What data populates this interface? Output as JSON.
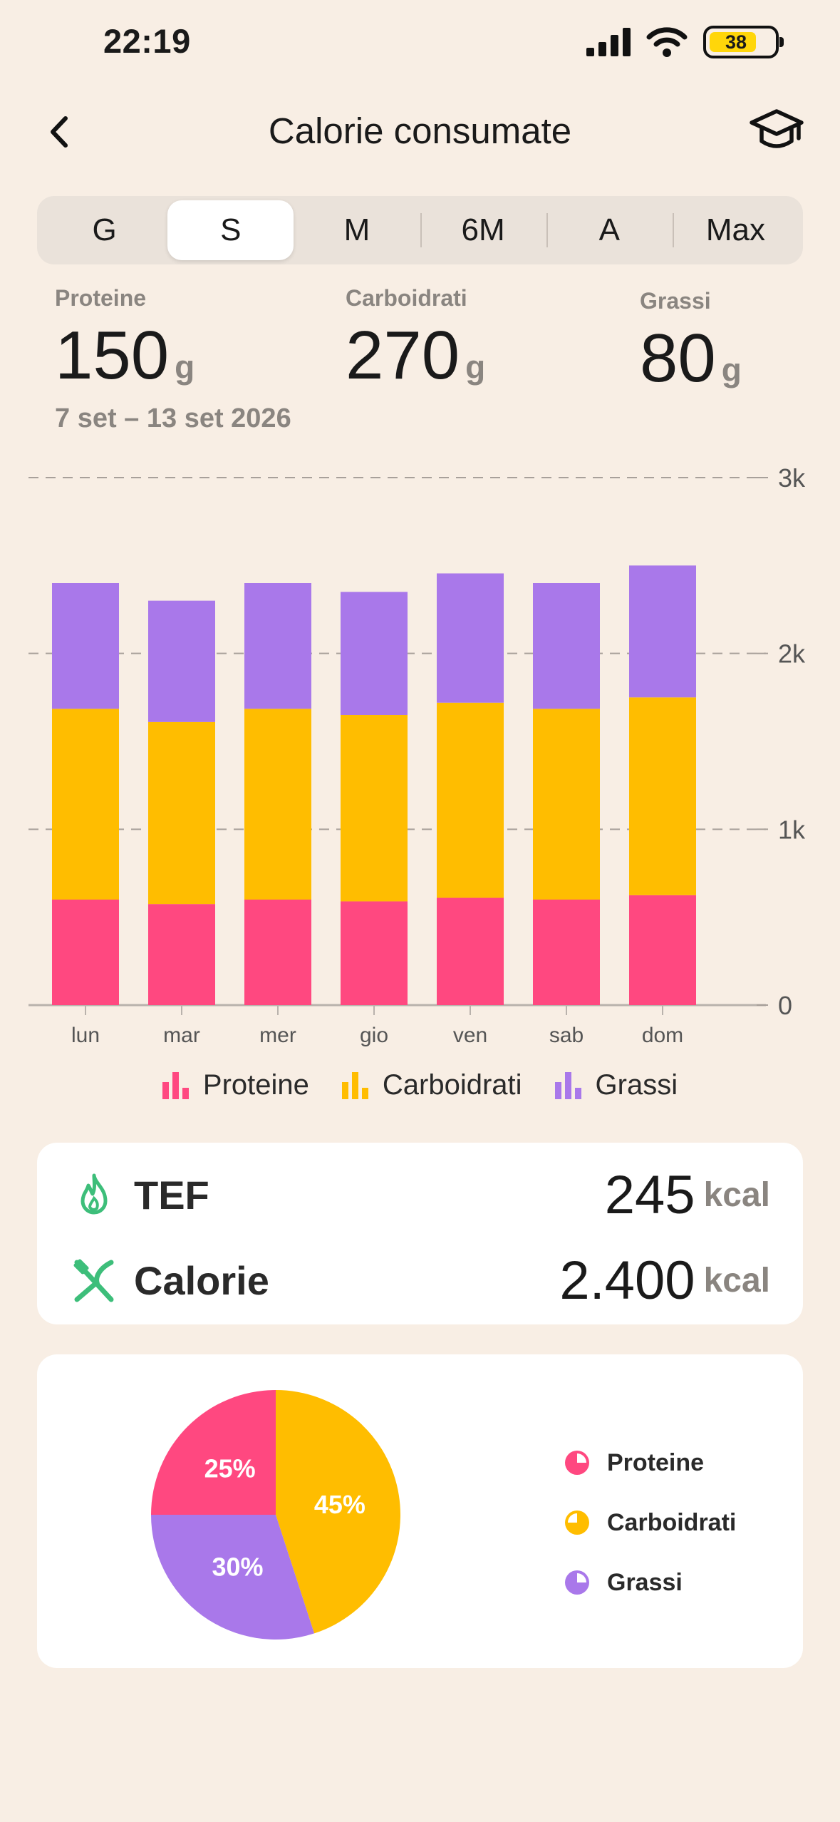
{
  "status": {
    "time": "22:19",
    "battery": "38"
  },
  "nav": {
    "title": "Calorie consumate"
  },
  "periods": [
    "G",
    "S",
    "M",
    "6M",
    "A",
    "Max"
  ],
  "selected_period": "S",
  "summary": {
    "protein": {
      "label": "Proteine",
      "value": "150",
      "unit": "g"
    },
    "carbs": {
      "label": "Carboidrati",
      "value": "270",
      "unit": "g"
    },
    "fat": {
      "label": "Grassi",
      "value": "80",
      "unit": "g"
    },
    "range": "7 set – 13 set 2026"
  },
  "colors": {
    "protein": "#FF4880",
    "carbs": "#FFBD00",
    "fat": "#A978EA",
    "green": "#3DBE7A"
  },
  "chart_data": {
    "type": "bar",
    "stacked": true,
    "categories": [
      "lun",
      "mar",
      "mer",
      "gio",
      "ven",
      "sab",
      "dom"
    ],
    "series": [
      {
        "name": "Proteine",
        "values": [
          600,
          575,
          600,
          590,
          610,
          600,
          625
        ]
      },
      {
        "name": "Carboidrati",
        "values": [
          1085,
          1035,
          1085,
          1060,
          1110,
          1085,
          1125
        ]
      },
      {
        "name": "Grassi",
        "values": [
          715,
          690,
          715,
          700,
          735,
          715,
          750
        ]
      }
    ],
    "yticks": [
      "0",
      "1k",
      "2k",
      "3k"
    ],
    "ylim": [
      0,
      3000
    ],
    "grid": "dashed horizontal",
    "legend": "bottom"
  },
  "info": {
    "tef": {
      "label": "TEF",
      "value": "245",
      "unit": "kcal"
    },
    "calories": {
      "label": "Calorie",
      "value": "2.400",
      "unit": "kcal"
    }
  },
  "pie": {
    "slices": [
      {
        "name": "Proteine",
        "pct": 25,
        "label": "25%"
      },
      {
        "name": "Carboidrati",
        "pct": 45,
        "label": "45%"
      },
      {
        "name": "Grassi",
        "pct": 30,
        "label": "30%"
      }
    ]
  }
}
